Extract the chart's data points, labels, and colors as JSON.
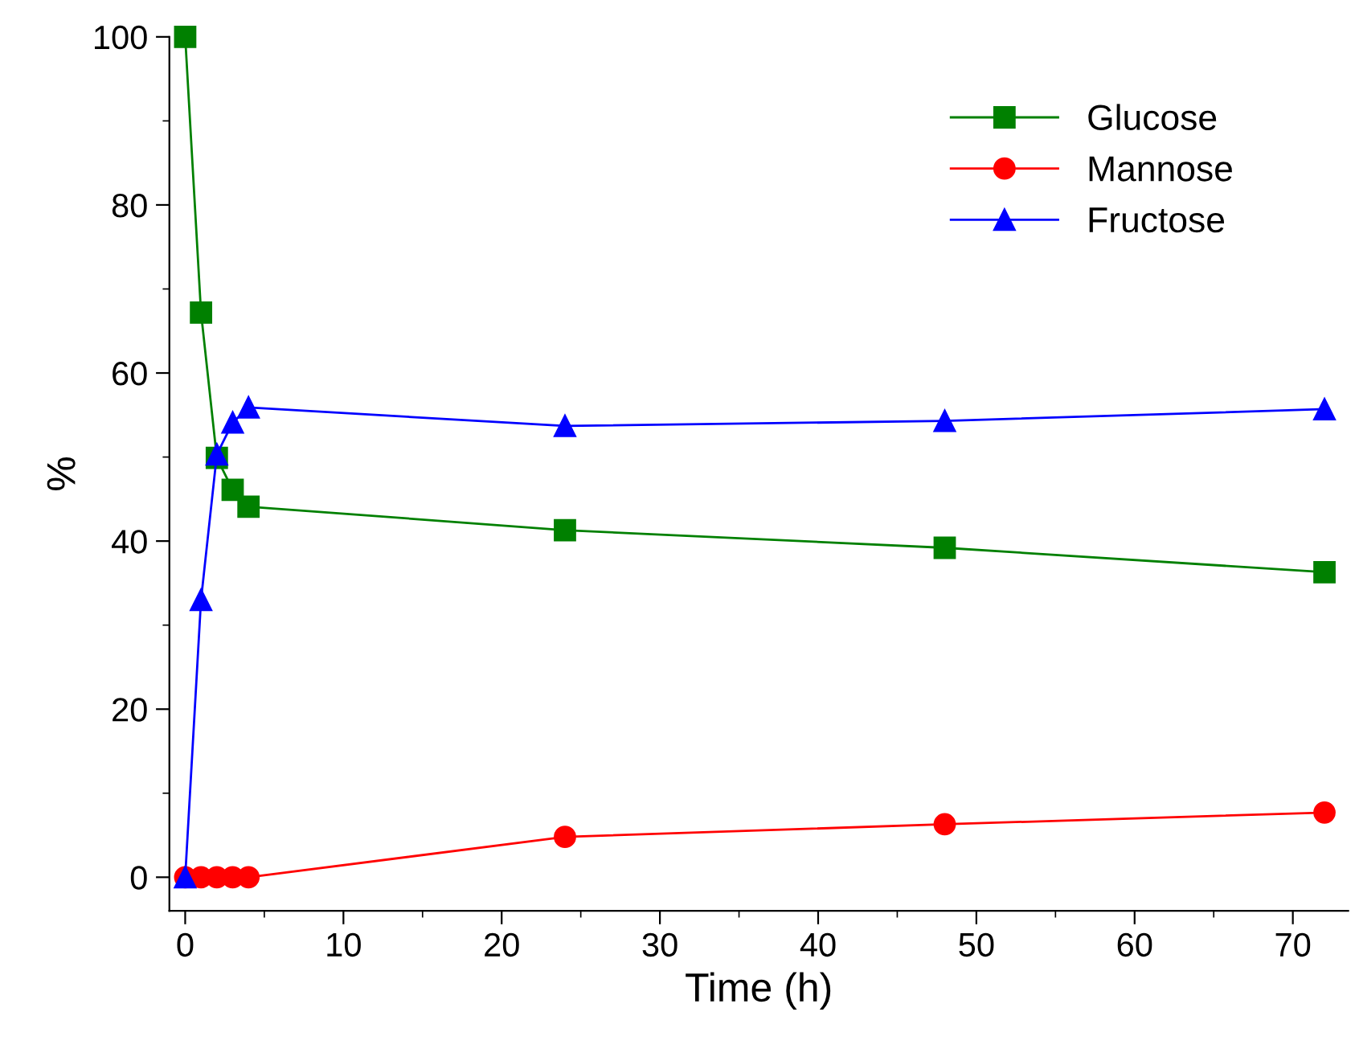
{
  "chart_data": {
    "type": "line",
    "xlabel": "Time (h)",
    "ylabel": "%",
    "xlim": [
      -1,
      73.5
    ],
    "ylim": [
      -4,
      100
    ],
    "xticks": [
      0,
      10,
      20,
      30,
      40,
      50,
      60,
      70
    ],
    "yticks": [
      0,
      20,
      40,
      60,
      80,
      100
    ],
    "grid": false,
    "legend": "top right",
    "line_style": "solid",
    "x": [
      0,
      1,
      2,
      3,
      4,
      24,
      48,
      72
    ],
    "series": [
      {
        "name": "Glucose",
        "color": "#008000",
        "marker": "square",
        "values": [
          100,
          67.2,
          49.9,
          46.1,
          44.1,
          41.3,
          39.2,
          36.3
        ]
      },
      {
        "name": "Mannose",
        "color": "#ff0000",
        "marker": "circle",
        "values": [
          0,
          0,
          0,
          0,
          0,
          4.8,
          6.3,
          7.7
        ]
      },
      {
        "name": "Fructose",
        "color": "#0000ff",
        "marker": "triangle",
        "values": [
          0,
          33.0,
          50.3,
          54.1,
          55.9,
          53.7,
          54.3,
          55.7
        ]
      }
    ]
  }
}
